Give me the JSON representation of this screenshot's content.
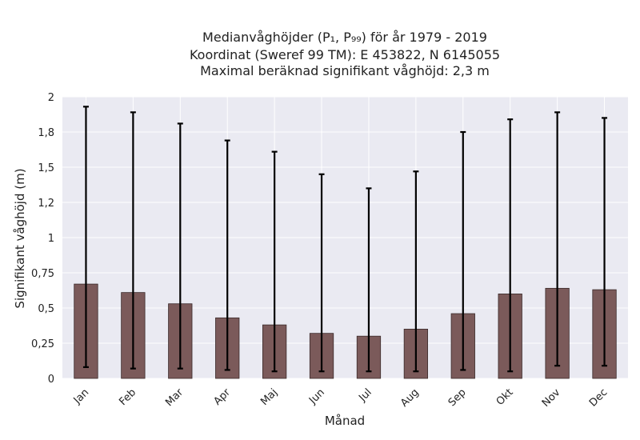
{
  "chart_data": {
    "type": "bar",
    "title_lines": [
      "Medianvåghöjder (P₁, P₉₉) för år 1979 - 2019",
      "Koordinat (Sweref 99 TM): E 453822, N 6145055",
      "Maximal beräknad signifikant våghöjd: 2,3 m"
    ],
    "xlabel": "Månad",
    "ylabel": "Signifikant våghöjd (m)",
    "categories": [
      "Jan",
      "Feb",
      "Mar",
      "Apr",
      "Maj",
      "Jun",
      "Jul",
      "Aug",
      "Sep",
      "Okt",
      "Nov",
      "Dec"
    ],
    "series": [
      {
        "values": [
          0.67,
          0.61,
          0.53,
          0.43,
          0.38,
          0.32,
          0.3,
          0.35,
          0.46,
          0.6,
          0.64,
          0.63
        ],
        "lower": [
          0.08,
          0.07,
          0.07,
          0.06,
          0.05,
          0.05,
          0.05,
          0.05,
          0.06,
          0.05,
          0.09,
          0.09
        ],
        "upper": [
          1.93,
          1.89,
          1.81,
          1.69,
          1.61,
          1.45,
          1.35,
          1.47,
          1.75,
          1.84,
          1.89,
          1.85
        ]
      }
    ],
    "yticks": [
      0,
      0.25,
      0.5,
      0.75,
      1,
      1.25,
      1.5,
      1.75,
      2
    ],
    "ytick_labels": [
      "0",
      "0,25",
      "0,5",
      "0,75",
      "1",
      "1,2",
      "1,5",
      "1,8",
      "2"
    ],
    "ylim": [
      0,
      2
    ],
    "grid": true,
    "colors": {
      "bar": "#7b5a5a",
      "background": "#eaeaf2",
      "error": "#000000"
    }
  }
}
